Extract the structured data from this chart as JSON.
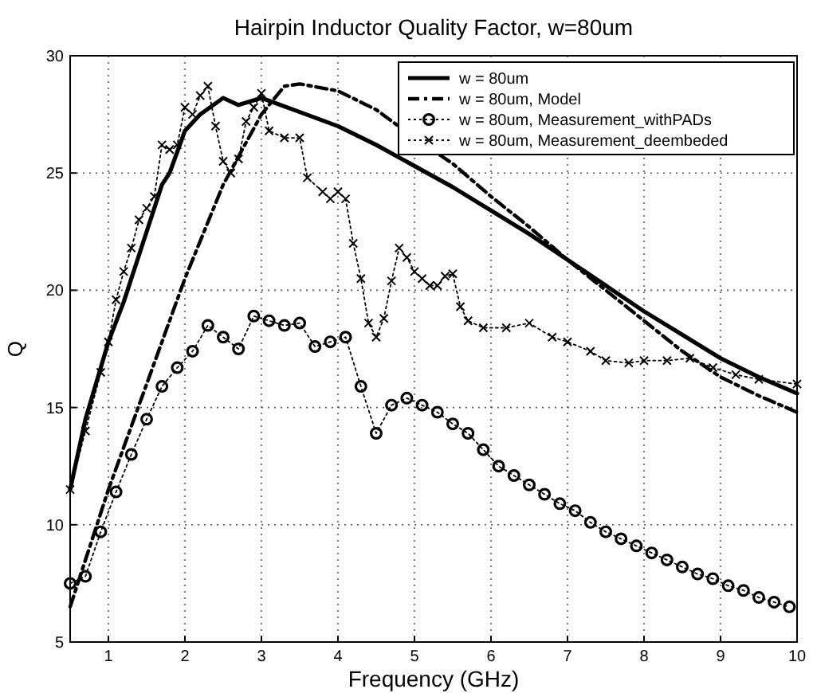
{
  "chart_data": {
    "type": "line",
    "title": "Hairpin Inductor Quality Factor, w=80um",
    "xlabel": "Frequency (GHz)",
    "ylabel": "Q",
    "xlim": [
      0.5,
      10
    ],
    "ylim": [
      5,
      30
    ],
    "xticks": [
      1,
      2,
      3,
      4,
      5,
      6,
      7,
      8,
      9,
      10
    ],
    "yticks": [
      5,
      10,
      15,
      20,
      25,
      30
    ],
    "grid": true,
    "legend": "top right",
    "series": [
      {
        "name": "w = 80um",
        "color": "#000000",
        "marker": "none",
        "line_style": "solid",
        "x": [
          0.5,
          0.7,
          1,
          1.2,
          1.5,
          1.7,
          1.8,
          2,
          2.2,
          2.5,
          2.7,
          3,
          3.5,
          4,
          4.5,
          5,
          5.5,
          6,
          6.5,
          7,
          7.5,
          8,
          8.5,
          9,
          9.5,
          10
        ],
        "values": [
          11.5,
          14.5,
          17.8,
          19.5,
          22.5,
          24.5,
          25,
          26.8,
          27.5,
          28.2,
          27.9,
          28.2,
          27.6,
          27,
          26.2,
          25.3,
          24.4,
          23.4,
          22.4,
          21.3,
          20.2,
          19.1,
          18.1,
          17.1,
          16.3,
          15.6
        ]
      },
      {
        "name": "w = 80um, Model",
        "color": "#000000",
        "marker": "none",
        "line_style": "dashed",
        "x": [
          0.5,
          0.7,
          1,
          1.5,
          2,
          2.5,
          3,
          3.3,
          3.5,
          4,
          4.5,
          5,
          5.5,
          6,
          6.5,
          7,
          7.5,
          8,
          8.5,
          9,
          9.5,
          10
        ],
        "values": [
          6.5,
          8.5,
          11.5,
          16,
          20.5,
          24.5,
          27.5,
          28.7,
          28.8,
          28.5,
          27.7,
          26.5,
          25.4,
          24,
          22.7,
          21.3,
          20,
          18.7,
          17.4,
          16.3,
          15.5,
          14.8
        ]
      },
      {
        "name": "w = 80um, Measurement_withPADs",
        "color": "#000000",
        "marker": "circle",
        "line_style": "dotted",
        "x": [
          0.5,
          0.7,
          0.9,
          1.1,
          1.3,
          1.5,
          1.7,
          1.9,
          2.1,
          2.3,
          2.5,
          2.7,
          2.9,
          3.1,
          3.3,
          3.5,
          3.7,
          3.9,
          4.1,
          4.3,
          4.5,
          4.7,
          4.9,
          5.1,
          5.3,
          5.5,
          5.7,
          5.9,
          6.1,
          6.3,
          6.5,
          6.7,
          6.9,
          7.1,
          7.3,
          7.5,
          7.7,
          7.9,
          8.1,
          8.3,
          8.5,
          8.7,
          8.9,
          9.1,
          9.3,
          9.5,
          9.7,
          9.9
        ],
        "values": [
          7.5,
          7.8,
          9.7,
          11.4,
          13,
          14.5,
          15.9,
          16.7,
          17.4,
          18.5,
          18,
          17.5,
          18.9,
          18.7,
          18.5,
          18.6,
          17.6,
          17.8,
          18,
          15.9,
          13.9,
          15.1,
          15.4,
          15.1,
          14.8,
          14.3,
          13.9,
          13.2,
          12.5,
          12.1,
          11.7,
          11.3,
          10.9,
          10.6,
          10.1,
          9.7,
          9.4,
          9.1,
          8.8,
          8.5,
          8.2,
          7.9,
          7.7,
          7.4,
          7.2,
          6.9,
          6.7,
          6.5
        ]
      },
      {
        "name": "w = 80um, Measurement_deembeded",
        "color": "#000000",
        "marker": "cross",
        "line_style": "dotted",
        "x": [
          0.5,
          0.7,
          0.9,
          1,
          1.1,
          1.2,
          1.3,
          1.4,
          1.5,
          1.6,
          1.7,
          1.8,
          1.9,
          2,
          2.1,
          2.2,
          2.3,
          2.4,
          2.5,
          2.6,
          2.7,
          2.8,
          2.9,
          3,
          3.1,
          3.3,
          3.5,
          3.6,
          3.8,
          3.9,
          4,
          4.1,
          4.2,
          4.3,
          4.4,
          4.5,
          4.6,
          4.7,
          4.8,
          4.9,
          5,
          5.1,
          5.2,
          5.3,
          5.4,
          5.5,
          5.6,
          5.7,
          5.9,
          6.2,
          6.5,
          6.8,
          7,
          7.3,
          7.5,
          7.8,
          8,
          8.3,
          8.6,
          8.9,
          9.2,
          9.5,
          10
        ],
        "values": [
          11.5,
          14,
          16.5,
          17.8,
          19.6,
          20.8,
          21.8,
          23,
          23.5,
          24,
          26.2,
          26,
          26.2,
          27.8,
          27.5,
          28.3,
          28.7,
          27,
          25.5,
          25,
          25.6,
          27.2,
          27.8,
          28.4,
          26.8,
          26.5,
          26.5,
          24.8,
          24.2,
          23.9,
          24.2,
          23.9,
          22,
          20.5,
          18.6,
          18,
          18.8,
          20.4,
          21.8,
          21.4,
          20.8,
          20.5,
          20.2,
          20.2,
          20.6,
          20.7,
          19.3,
          18.7,
          18.4,
          18.4,
          18.6,
          18,
          17.8,
          17.4,
          17,
          16.9,
          17,
          17,
          17.1,
          16.7,
          16.4,
          16.2,
          16
        ]
      }
    ]
  }
}
